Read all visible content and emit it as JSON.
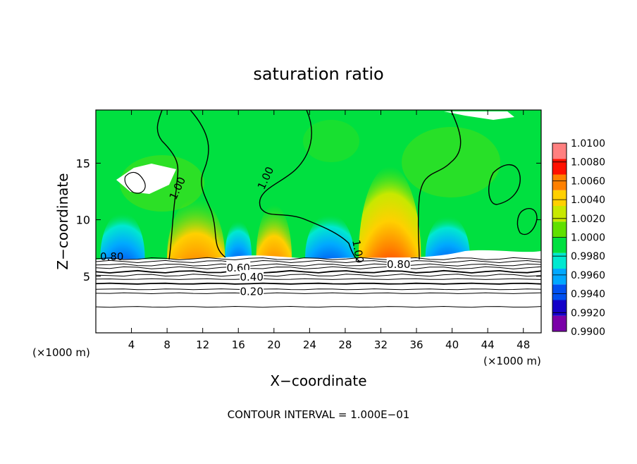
{
  "chart_data": {
    "type": "heatmap",
    "title": "saturation ratio",
    "xlabel": "X−coordinate",
    "ylabel": "Z−coordinate",
    "x_unit_left": "(×1000 m)",
    "x_unit_right": "(×1000 m)",
    "xlim": [
      0,
      50
    ],
    "ylim": [
      0,
      19.7
    ],
    "x_ticks": [
      4,
      8,
      12,
      16,
      20,
      24,
      28,
      32,
      36,
      40,
      44,
      48
    ],
    "y_ticks": [
      5,
      10,
      15
    ],
    "footer": "CONTOUR INTERVAL = 1.000E−01",
    "colorbar": {
      "levels": [
        "0.9900",
        "0.9920",
        "0.9940",
        "0.9960",
        "0.9980",
        "1.0000",
        "1.0020",
        "1.0040",
        "1.0060",
        "1.0080",
        "1.0100"
      ],
      "colors": [
        "#7a00a8",
        "#1400c8",
        "#0050f0",
        "#00a8ff",
        "#00e8d0",
        "#00e040",
        "#60e000",
        "#c8e800",
        "#ffd000",
        "#ff8000",
        "#ff1000",
        "#ff8080"
      ]
    },
    "contour_labels": [
      {
        "text": "1.00",
        "x": 9.1,
        "z": 12.8
      },
      {
        "text": "1.00",
        "x": 19.0,
        "z": 13.7
      },
      {
        "text": "1.00",
        "x": 29.5,
        "z": 7.2
      },
      {
        "text": "0.80",
        "x": 1.8,
        "z": 6.8
      },
      {
        "text": "0.80",
        "x": 34.0,
        "z": 6.1
      },
      {
        "text": "0.60",
        "x": 16.0,
        "z": 5.8
      },
      {
        "text": "0.40",
        "x": 17.5,
        "z": 5.0
      },
      {
        "text": "0.20",
        "x": 17.5,
        "z": 3.7
      }
    ],
    "boundary_levels": [
      2.3,
      3.5,
      3.85,
      4.35,
      4.75,
      5.1,
      5.4,
      5.75,
      6.0,
      6.3,
      6.55
    ],
    "warm_cells": [
      {
        "x0": 8.0,
        "x1": 14.5,
        "peak": 1.0065
      },
      {
        "x0": 18.0,
        "x1": 22.0,
        "peak": 1.006
      },
      {
        "x0": 29.5,
        "x1": 36.5,
        "peak": 1.0085
      }
    ],
    "cold_cells": [
      {
        "x0": 0.5,
        "x1": 5.5,
        "peak": 0.9925
      },
      {
        "x0": 23.5,
        "x1": 29.0,
        "peak": 0.993
      },
      {
        "x0": 37.0,
        "x1": 42.0,
        "peak": 0.9935
      },
      {
        "x0": 14.5,
        "x1": 17.5,
        "peak": 0.995
      }
    ]
  }
}
